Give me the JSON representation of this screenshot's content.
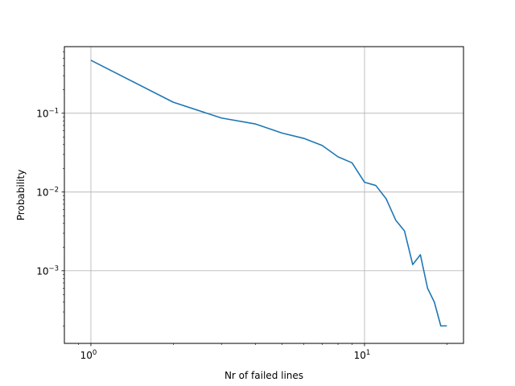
{
  "chart_data": {
    "type": "line",
    "title": "",
    "xlabel": "Nr of failed lines",
    "ylabel": "Probability",
    "xscale": "log",
    "yscale": "log",
    "xlim": [
      0.8,
      23
    ],
    "ylim": [
      0.00012,
      0.7
    ],
    "grid": true,
    "line_color": "#1f77b4",
    "x_ticks": [
      {
        "value": 1,
        "base": "10",
        "exp": "0"
      },
      {
        "value": 10,
        "base": "10",
        "exp": "1"
      }
    ],
    "y_ticks": [
      {
        "value": 0.001,
        "base": "10",
        "exp": "−3"
      },
      {
        "value": 0.01,
        "base": "10",
        "exp": "−2"
      },
      {
        "value": 0.1,
        "base": "10",
        "exp": "−1"
      }
    ],
    "x": [
      1,
      2,
      3,
      4,
      5,
      6,
      7,
      8,
      9,
      10,
      11,
      12,
      13,
      14,
      15,
      16,
      17,
      18,
      19,
      20
    ],
    "y": [
      0.47,
      0.138,
      0.087,
      0.073,
      0.056,
      0.048,
      0.039,
      0.028,
      0.0235,
      0.0133,
      0.0121,
      0.0082,
      0.0044,
      0.0032,
      0.0012,
      0.0016,
      0.0006,
      0.0004,
      0.0002,
      0.0002
    ]
  }
}
